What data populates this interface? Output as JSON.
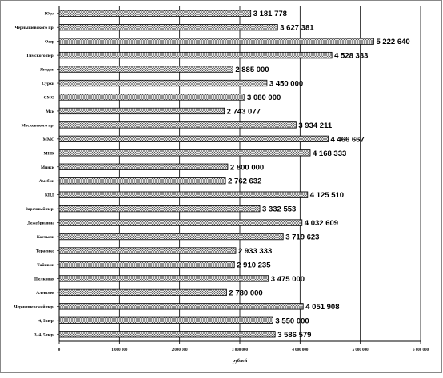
{
  "chart_data": {
    "type": "bar",
    "orientation": "horizontal",
    "categories": [
      "Юрл",
      "Чернышевского пр.",
      "Озер",
      "Тимского пер.",
      "Ягодин",
      "Сурхи",
      "СМО",
      "Мск",
      "Московского пр.",
      "ММС",
      "МНК",
      "Минск",
      "Амебин",
      "КПД",
      "Заречный пер.",
      "Дежебрилина",
      "Костыли",
      "Тераенко",
      "Тайнвин",
      "Шелковая",
      "Алексеев",
      "Чернышевский пер.",
      "4, 5 пер.",
      "3, 4, 5 пер."
    ],
    "values": [
      3181778,
      3627381,
      5222640,
      4528333,
      2885000,
      3450000,
      3080000,
      2743077,
      3934211,
      4466667,
      4168333,
      2800000,
      2762632,
      4125510,
      3332553,
      4032609,
      3719623,
      2933333,
      2910235,
      3475000,
      2780000,
      4051908,
      3550000,
      3586579
    ],
    "value_labels": [
      "3 181 778",
      "3 627 381",
      "5 222 640",
      "4 528 333",
      "2 885 000",
      "3 450 000",
      "3 080 000",
      "2 743 077",
      "3 934 211",
      "4 466 667",
      "4 168 333",
      "2 800 000",
      "2 762 632",
      "4 125 510",
      "3 332 553",
      "4 032 609",
      "3 719 623",
      "2 933 333",
      "2 910 235",
      "3 475 000",
      "2 780 000",
      "4 051 908",
      "3 550 000",
      "3 586 579"
    ],
    "xlim": [
      0,
      6000000
    ],
    "xticks": [
      0,
      1000000,
      2000000,
      3000000,
      4000000,
      5000000,
      6000000
    ],
    "xtick_labels": [
      "0",
      "1 000 000",
      "2 000 000",
      "3 000 000",
      "4 000 000",
      "5 000 000",
      "6 000 000"
    ],
    "xlabel": "рублей",
    "grid": "vertical gridlines at each major tick",
    "bar_fill": "crosshatch",
    "legend": "none"
  }
}
